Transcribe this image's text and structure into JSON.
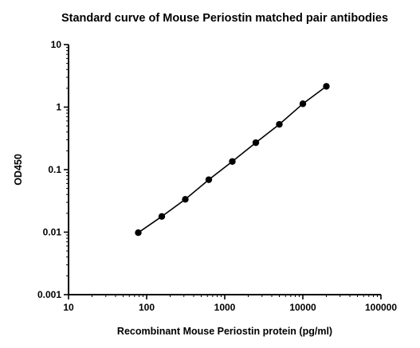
{
  "chart_data": {
    "type": "scatter",
    "title": "Standard curve of Mouse Periostin matched pair antibodies",
    "xlabel": "Recombinant Mouse Periostin protein (pg/ml)",
    "ylabel": "OD450",
    "x_scale": "log",
    "y_scale": "log",
    "xlim": [
      10,
      100000
    ],
    "ylim": [
      0.001,
      10
    ],
    "x_ticks": [
      10,
      100,
      1000,
      10000,
      100000
    ],
    "x_tick_labels": [
      "10",
      "100",
      "1000",
      "10000",
      "100000"
    ],
    "y_ticks": [
      0.001,
      0.01,
      0.1,
      1,
      10
    ],
    "y_tick_labels": [
      "0.001",
      "0.01",
      "0.1",
      "1",
      "10"
    ],
    "grid": false,
    "legend": "none",
    "series": [
      {
        "x": [
          78.125,
          156.25,
          312.5,
          625,
          1250,
          2500,
          5000,
          10000,
          20000
        ],
        "y": [
          0.0098,
          0.0178,
          0.0335,
          0.069,
          0.135,
          0.27,
          0.53,
          1.13,
          2.15
        ],
        "color": "#000000",
        "marker": "circle",
        "fit_line": true
      }
    ]
  }
}
